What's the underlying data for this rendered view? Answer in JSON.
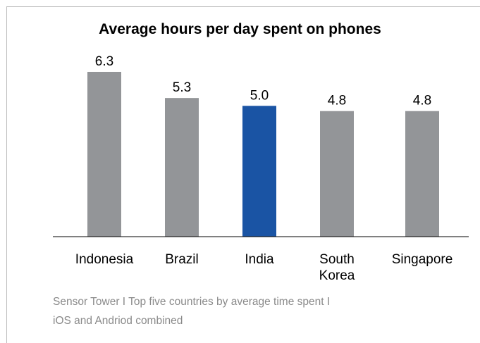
{
  "chart_data": {
    "type": "bar",
    "title": "Average hours per day spent on phones",
    "categories": [
      "Indonesia",
      "Brazil",
      "India",
      "South Korea",
      "Singapore"
    ],
    "category_labels": [
      [
        "Indonesia"
      ],
      [
        "Brazil"
      ],
      [
        "India"
      ],
      [
        "South",
        "Korea"
      ],
      [
        "Singapore"
      ]
    ],
    "values": [
      6.3,
      5.3,
      5.0,
      4.8,
      4.8
    ],
    "value_labels": [
      "6.3",
      "5.3",
      "5.0",
      "4.8",
      "4.8"
    ],
    "ylim": [
      0,
      6.3
    ],
    "grid": false,
    "legend": "none",
    "xlabel": "",
    "ylabel": "",
    "highlight_category": "India",
    "colors": {
      "default": "#939598",
      "highlight": "#1a54a4"
    }
  },
  "source": {
    "line1": "Sensor Tower I Top five countries by average time spent I",
    "line2": "iOS and Andriod combined"
  }
}
